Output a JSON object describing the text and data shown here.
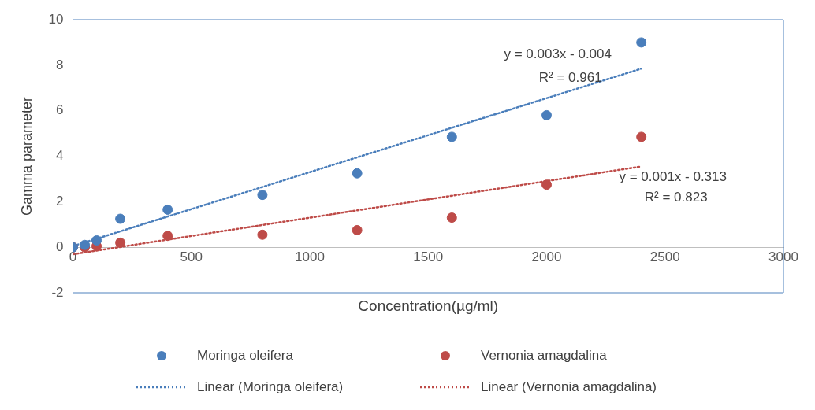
{
  "chart_data": {
    "type": "scatter",
    "xlabel": "Concentration(µg/ml)",
    "ylabel": "Gamma parameter",
    "xlim": [
      0,
      3000
    ],
    "xticks": [
      0,
      500,
      1000,
      1500,
      2000,
      2500,
      3000
    ],
    "ylim": [
      -2,
      10
    ],
    "yticks": [
      -2,
      0,
      2,
      4,
      6,
      8,
      10
    ],
    "grid": false,
    "legend": "bottom",
    "marker": "circle",
    "series": [
      {
        "name": "Moringa oleifera",
        "color": "#4a7ebb",
        "x": [
          0,
          50,
          100,
          200,
          400,
          800,
          1200,
          1600,
          2000,
          2400
        ],
        "values": [
          0,
          0.1,
          0.3,
          1.25,
          1.65,
          2.3,
          3.25,
          4.85,
          5.8,
          9.0
        ]
      },
      {
        "name": "Vernonia amagdalina",
        "color": "#be4b48",
        "x": [
          0,
          50,
          100,
          200,
          400,
          800,
          1200,
          1600,
          2000,
          2400
        ],
        "values": [
          0,
          0,
          0.05,
          0.2,
          0.5,
          0.55,
          0.75,
          1.3,
          2.75,
          4.85
        ]
      },
      {
        "name": "Linear (Moringa oleifera)",
        "type": "line",
        "line_style": "dotted",
        "marker": "none",
        "color": "#4a7ebb",
        "x": [
          0,
          2400
        ],
        "values": [
          0.05,
          7.85
        ]
      },
      {
        "name": "Linear (Vernonia amagdalina)",
        "type": "line",
        "line_style": "dotted",
        "marker": "none",
        "color": "#be4b48",
        "x": [
          0,
          2400
        ],
        "values": [
          -0.31,
          3.55
        ]
      }
    ],
    "annotations": [
      "y = 0.003x - 0.004",
      "R² = 0.961",
      "y = 0.001x - 0.313",
      "R² = 0.823"
    ]
  }
}
